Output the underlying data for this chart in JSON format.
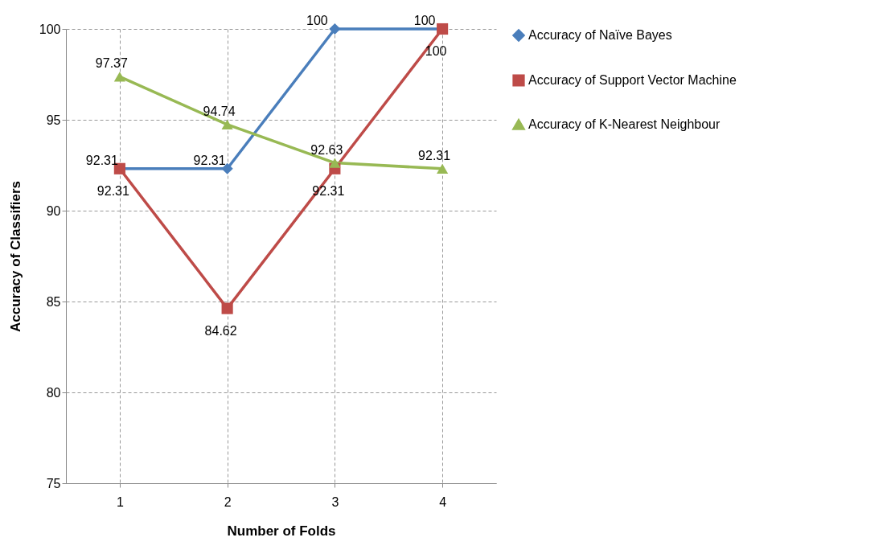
{
  "chart_data": {
    "type": "line",
    "xlabel": "Number of Folds",
    "ylabel": "Accuracy of Classifiers",
    "categories": [
      "1",
      "2",
      "3",
      "4"
    ],
    "series": [
      {
        "name": "Accuracy of Naïve Bayes",
        "color": "#4a7ebb",
        "marker": "diamond",
        "values": [
          92.31,
          92.31,
          100,
          100
        ]
      },
      {
        "name": "Accuracy of Support Vector Machine",
        "color": "#be4b48",
        "marker": "square",
        "values": [
          92.31,
          84.62,
          92.31,
          100
        ]
      },
      {
        "name": "Accuracy of K-Nearest Neighbour",
        "color": "#98b954",
        "marker": "triangle",
        "values": [
          97.37,
          94.74,
          92.63,
          92.31
        ]
      }
    ],
    "ylim": [
      75,
      100
    ],
    "yticks": [
      75,
      80,
      85,
      90,
      95,
      100
    ],
    "grid": true,
    "legend": "right",
    "data_labels": true,
    "line_style": "solid"
  }
}
